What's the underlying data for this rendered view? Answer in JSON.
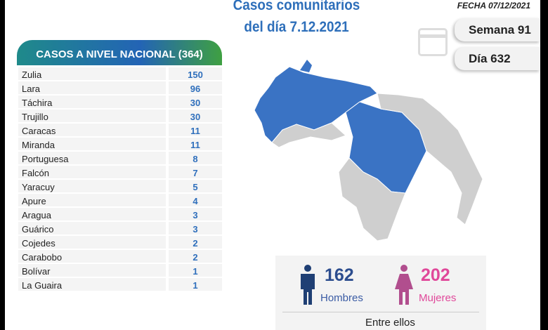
{
  "header": {
    "title_line1": "Casos comunitarios",
    "title_line2": "del día 7.12.2021",
    "fecha": "FECHA 07/12/2021",
    "semana": "Semana 91",
    "dia": "Día 632"
  },
  "table": {
    "title": "CASOS A NIVEL NACIONAL  (364)",
    "rows": [
      {
        "state": "Zulia",
        "cases": "150"
      },
      {
        "state": "Lara",
        "cases": "96"
      },
      {
        "state": "Táchira",
        "cases": "30"
      },
      {
        "state": "Trujillo",
        "cases": "30"
      },
      {
        "state": "Caracas",
        "cases": "11"
      },
      {
        "state": "Miranda",
        "cases": "11"
      },
      {
        "state": "Portuguesa",
        "cases": "8"
      },
      {
        "state": "Falcón",
        "cases": "7"
      },
      {
        "state": "Yaracuy",
        "cases": "5"
      },
      {
        "state": "Apure",
        "cases": "4"
      },
      {
        "state": "Aragua",
        "cases": "3"
      },
      {
        "state": "Guárico",
        "cases": "3"
      },
      {
        "state": "Cojedes",
        "cases": "2"
      },
      {
        "state": "Carabobo",
        "cases": "2"
      },
      {
        "state": "Bolívar",
        "cases": "1"
      },
      {
        "state": "La Guaira",
        "cases": "1"
      }
    ]
  },
  "gender": {
    "men_count": "162",
    "men_label": "Hombres",
    "women_count": "202",
    "women_label": "Mujeres",
    "between": "Entre ellos"
  },
  "colors": {
    "accent": "#2e6fba",
    "map_blue": "#3a73c4",
    "map_gray": "#cfcfcf",
    "women": "#e0489a"
  }
}
